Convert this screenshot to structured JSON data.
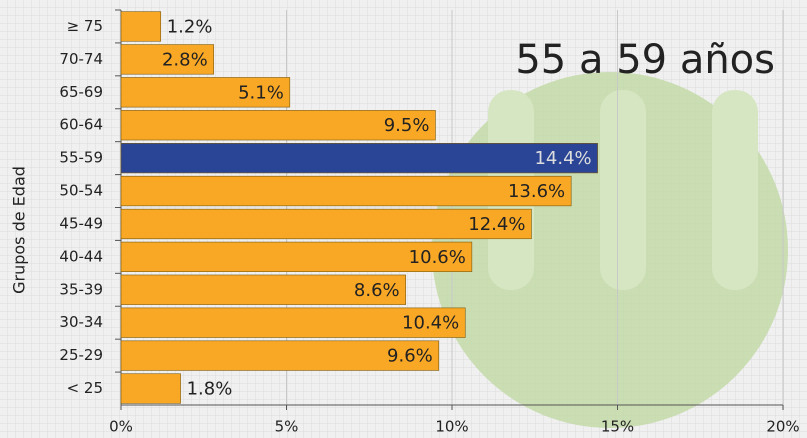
{
  "chart_data": {
    "type": "hbar",
    "annotation": "55 a 59 años",
    "ylabel": "Grupos de Edad",
    "categories": [
      "≥ 75",
      "70-74",
      "65-69",
      "60-64",
      "55-59",
      "50-54",
      "45-49",
      "40-44",
      "35-39",
      "30-34",
      "25-29",
      "< 25"
    ],
    "values": [
      1.2,
      2.8,
      5.1,
      9.5,
      14.4,
      13.6,
      12.4,
      10.6,
      8.6,
      10.4,
      9.6,
      1.8
    ],
    "value_labels": [
      "1.2%",
      "2.8%",
      "5.1%",
      "9.5%",
      "14.4%",
      "13.6%",
      "12.4%",
      "10.6%",
      "8.6%",
      "10.4%",
      "9.6%",
      "1.8%"
    ],
    "colors": [
      "#f9a825",
      "#f9a825",
      "#f9a825",
      "#f9a825",
      "#2b4596",
      "#f9a825",
      "#f9a825",
      "#f9a825",
      "#f9a825",
      "#f9a825",
      "#f9a825",
      "#f9a825"
    ],
    "xlim": [
      0,
      20
    ],
    "xticks": [
      {
        "value": 0,
        "label": "0%"
      },
      {
        "value": 5,
        "label": "5%"
      },
      {
        "value": 10,
        "label": "10%"
      },
      {
        "value": 15,
        "label": "15%"
      },
      {
        "value": 20,
        "label": "20%"
      }
    ],
    "grid": true
  }
}
